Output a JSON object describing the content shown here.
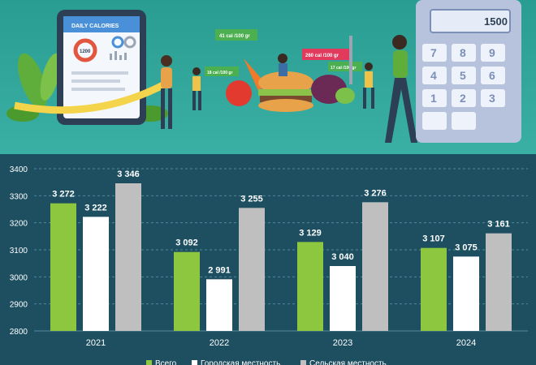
{
  "banner": {
    "card_title": "DAILY CALORIES",
    "card_value": "1200",
    "tags": [
      "41 cal /100 gr",
      "18 cal /100 gr",
      "260 cal /100 gr",
      "17 cal /100 gr"
    ],
    "calculator_display": "1500",
    "calculator_keys": [
      "7",
      "8",
      "9",
      "4",
      "5",
      "6",
      "1",
      "2",
      "3"
    ]
  },
  "chart_data": {
    "type": "bar",
    "categories": [
      "2021",
      "2022",
      "2023",
      "2024"
    ],
    "series": [
      {
        "name": "Всего",
        "color": "#8dc63f",
        "values": [
          3272,
          3092,
          3129,
          3107
        ]
      },
      {
        "name": "Городская местность",
        "color": "#ffffff",
        "values": [
          3222,
          2991,
          3040,
          3075
        ]
      },
      {
        "name": "Сельская местность",
        "color": "#bfbfbf",
        "values": [
          3346,
          3255,
          3276,
          3161
        ]
      }
    ],
    "value_labels": [
      [
        "3 272",
        "3 092",
        "3 129",
        "3 107"
      ],
      [
        "3 222",
        "2 991",
        "3 040",
        "3 075"
      ],
      [
        "3 346",
        "3 255",
        "3 276",
        "3 161"
      ]
    ],
    "yticks": [
      "2800",
      "2900",
      "3000",
      "3100",
      "3200",
      "3300",
      "3400"
    ],
    "ylim": [
      2800,
      3400
    ],
    "grid": true,
    "legend_position": "bottom"
  }
}
